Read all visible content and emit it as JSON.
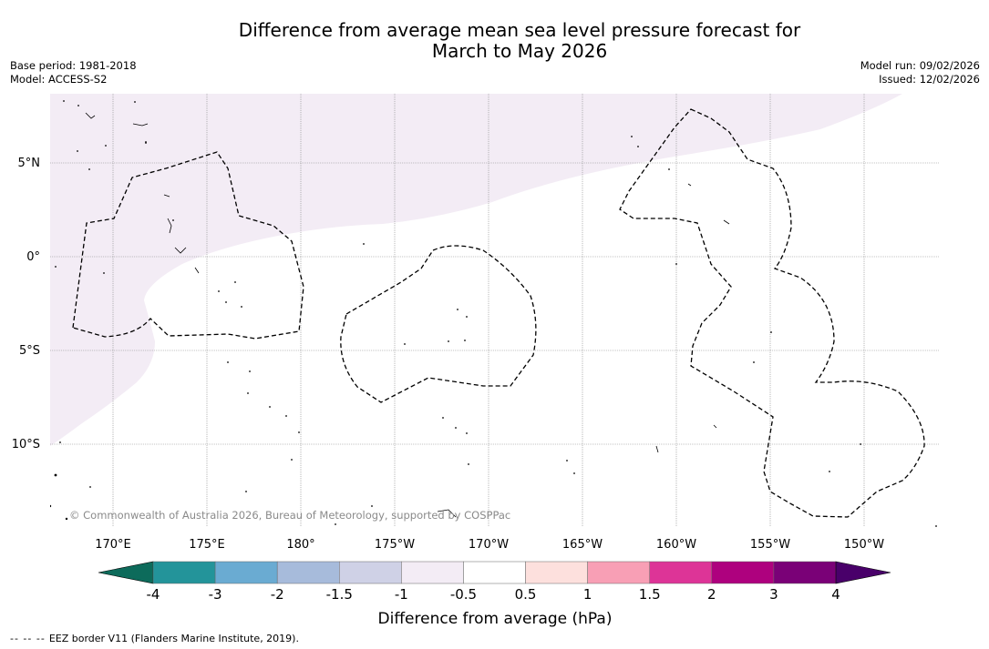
{
  "title": {
    "line1": "Difference from average mean sea level pressure forecast for",
    "line2": "March to May 2026"
  },
  "meta": {
    "base_period": "Base period: 1981-2018",
    "model": "Model: ACCESS-S2",
    "model_run": "Model run: 09/02/2026",
    "issued": "Issued: 12/02/2026"
  },
  "map": {
    "lat_labels": [
      "5°N",
      "0°",
      "5°S",
      "10°S"
    ],
    "lon_labels": [
      "170°E",
      "175°E",
      "180°",
      "175°W",
      "170°W",
      "165°W",
      "160°W",
      "155°W",
      "150°W"
    ],
    "copyright": "© Commonwealth of Australia 2026, Bureau of Meteorology, supported by COSPPac",
    "shaded_category": "-0.5 to -1 hPa"
  },
  "colorbar": {
    "label": "Difference from average (hPa)",
    "ticks": [
      "-4",
      "-3",
      "-2",
      "-1.5",
      "-1",
      "-0.5",
      "0.5",
      "1",
      "1.5",
      "2",
      "3",
      "4"
    ],
    "colors": [
      "#0d6b5b",
      "#23949a",
      "#6aabd2",
      "#a7bbdb",
      "#cfd1e6",
      "#f3ecf5",
      "#ffffff",
      "#fde0dd",
      "#f89fb5",
      "#dd3497",
      "#ae017e",
      "#7a0177",
      "#49006a"
    ]
  },
  "legend": {
    "eez_label": "EEZ border V11 (Flanders Marine Institute, 2019).",
    "dash_symbol": "-- -- --"
  }
}
